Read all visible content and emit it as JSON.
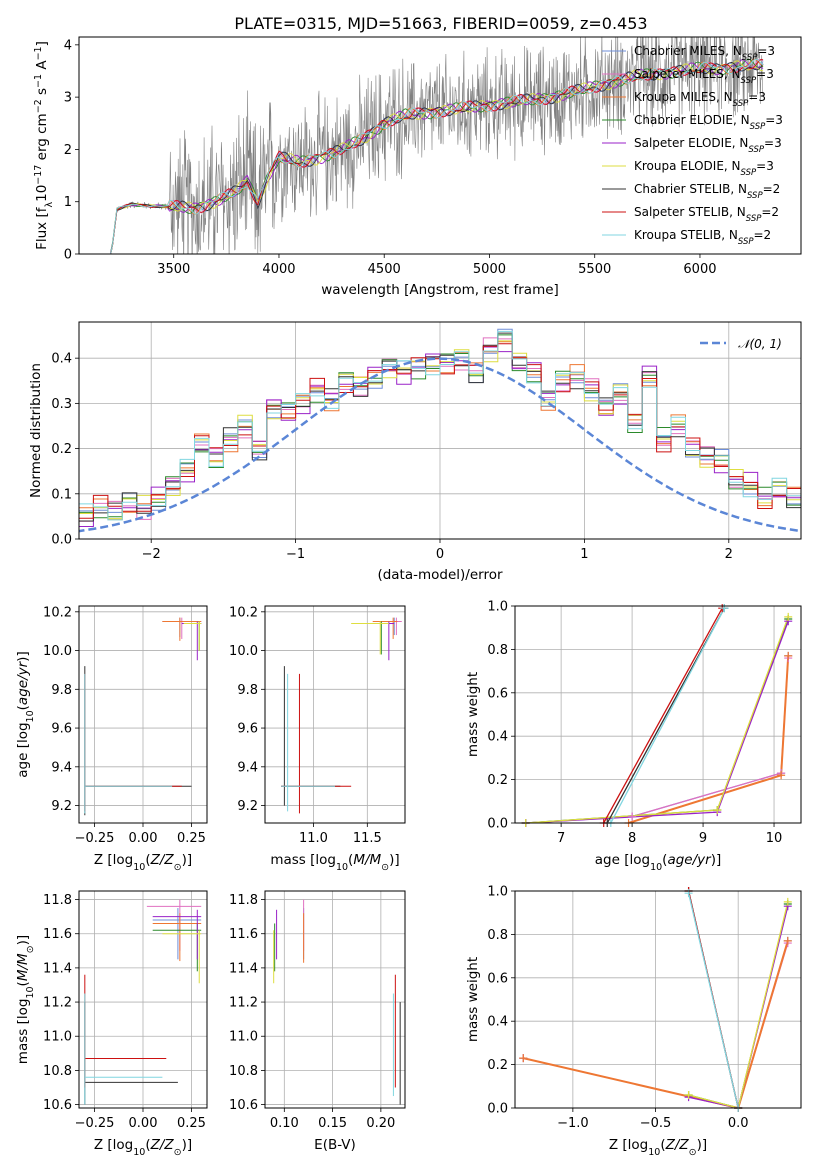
{
  "figure_title": "PLATE=0315, MJD=51663, FIBERID=0059, z=0.453",
  "colors": {
    "Chabrier MILES": "#6e8ed8",
    "Salpeter MILES": "#e070c0",
    "Kroupa MILES": "#ee7733",
    "Chabrier ELODIE": "#2b8a2b",
    "Salpeter ELODIE": "#9a22c8",
    "Kroupa ELODIE": "#dede40",
    "Chabrier STELIB": "#333333",
    "Salpeter STELIB": "#cc1111",
    "Kroupa STELIB": "#80d6e0",
    "data": "#808080",
    "normal": "#5b86d6"
  },
  "chart_data": [
    {
      "type": "line",
      "title": "PLATE=0315, MJD=51663, FIBERID=0059, z=0.453",
      "xlabel": "wavelength [Angstrom, rest frame]",
      "ylabel": "Flux [f_λ 10^-17 erg cm^-2 s^-1 A^-1]",
      "xlim": [
        3050,
        6480
      ],
      "ylim": [
        0,
        4.15
      ],
      "xticks": [
        3500,
        4000,
        4500,
        5000,
        5500,
        6000
      ],
      "yticks": [
        0,
        1,
        2,
        3,
        4
      ],
      "continuum": [
        [
          3200,
          0
        ],
        [
          3210,
          0.2
        ],
        [
          3230,
          0.85
        ],
        [
          3300,
          0.95
        ],
        [
          3400,
          0.92
        ],
        [
          3500,
          0.9
        ],
        [
          3600,
          0.88
        ],
        [
          3700,
          1.0
        ],
        [
          3800,
          1.2
        ],
        [
          3850,
          1.4
        ],
        [
          3900,
          1.0
        ],
        [
          3950,
          1.5
        ],
        [
          4000,
          1.85
        ],
        [
          4100,
          1.75
        ],
        [
          4200,
          1.85
        ],
        [
          4300,
          2.0
        ],
        [
          4400,
          2.2
        ],
        [
          4500,
          2.5
        ],
        [
          4600,
          2.65
        ],
        [
          4700,
          2.7
        ],
        [
          4800,
          2.75
        ],
        [
          4900,
          2.8
        ],
        [
          5000,
          2.85
        ],
        [
          5100,
          2.9
        ],
        [
          5200,
          2.95
        ],
        [
          5300,
          3.0
        ],
        [
          5400,
          3.1
        ],
        [
          5500,
          3.2
        ],
        [
          5600,
          3.3
        ],
        [
          5700,
          3.4
        ],
        [
          5800,
          3.45
        ],
        [
          5900,
          3.5
        ],
        [
          6000,
          3.55
        ],
        [
          6100,
          3.55
        ],
        [
          6200,
          3.6
        ],
        [
          6300,
          3.6
        ]
      ],
      "legend": [
        {
          "name": "Chabrier MILES",
          "label_main": "Chabrier MILES, N",
          "label_sub": "SSP",
          "label_end": "=3"
        },
        {
          "name": "Salpeter MILES",
          "label_main": "Salpeter MILES, N",
          "label_sub": "SSP",
          "label_end": "=3"
        },
        {
          "name": "Kroupa MILES",
          "label_main": "Kroupa MILES, N",
          "label_sub": "SSP",
          "label_end": "=3"
        },
        {
          "name": "Chabrier ELODIE",
          "label_main": "Chabrier ELODIE, N",
          "label_sub": "SSP",
          "label_end": "=3"
        },
        {
          "name": "Salpeter ELODIE",
          "label_main": "Salpeter ELODIE, N",
          "label_sub": "SSP",
          "label_end": "=3"
        },
        {
          "name": "Kroupa ELODIE",
          "label_main": "Kroupa ELODIE, N",
          "label_sub": "SSP",
          "label_end": "=3"
        },
        {
          "name": "Chabrier STELIB",
          "label_main": "Chabrier STELIB, N",
          "label_sub": "SSP",
          "label_end": "=2"
        },
        {
          "name": "Salpeter STELIB",
          "label_main": "Salpeter STELIB, N",
          "label_sub": "SSP",
          "label_end": "=2"
        },
        {
          "name": "Kroupa STELIB",
          "label_main": "Kroupa STELIB, N",
          "label_sub": "SSP",
          "label_end": "=2"
        }
      ],
      "legend_position": "upper right"
    },
    {
      "type": "line",
      "xlabel": "(data-model)/error",
      "ylabel": "Normed distribution",
      "xlim": [
        -2.5,
        2.5
      ],
      "ylim": [
        0,
        0.48
      ],
      "xticks": [
        -2,
        -1,
        0,
        1,
        2
      ],
      "yticks": [
        0.0,
        0.1,
        0.2,
        0.3,
        0.4
      ],
      "legend": "𝒩(0, 1)",
      "legend_position": "upper right",
      "bin_width": 0.1,
      "histogram_bins": [
        0.03,
        0.04,
        0.05,
        0.06,
        0.06,
        0.05,
        0.07,
        0.06,
        0.08,
        0.07,
        0.09,
        0.12,
        0.15,
        0.21,
        0.18,
        0.22,
        0.25,
        0.2,
        0.29,
        0.28,
        0.3,
        0.33,
        0.31,
        0.35,
        0.34,
        0.36,
        0.38,
        0.37,
        0.38,
        0.39,
        0.39,
        0.4,
        0.37,
        0.42,
        0.44,
        0.39,
        0.37,
        0.31,
        0.35,
        0.36,
        0.33,
        0.29,
        0.32,
        0.26,
        0.36,
        0.22,
        0.25,
        0.2,
        0.18,
        0.17,
        0.13,
        0.12,
        0.09,
        0.11,
        0.09,
        0.08,
        0.07,
        0.06,
        0.05,
        0.05
      ]
    },
    {
      "type": "scatter",
      "xlabel": "Z [log10(Z/Z⊙)]",
      "ylabel": "age [log10(age/yr)]",
      "xlim": [
        -0.33,
        0.33
      ],
      "ylim": [
        9.11,
        10.23
      ],
      "xticks": [
        -0.25,
        0.0,
        0.25
      ],
      "yticks": [
        9.2,
        9.4,
        9.6,
        9.8,
        10.0,
        10.2
      ],
      "error_crosses": [
        {
          "series": "Chabrier MILES",
          "x": 0.19,
          "y": 10.15,
          "x_lo": 0.1,
          "x_hi": 0.3,
          "y_lo": 10.07,
          "y_hi": 10.17
        },
        {
          "series": "Salpeter MILES",
          "x": 0.2,
          "y": 10.15,
          "x_lo": 0.1,
          "x_hi": 0.3,
          "y_lo": 10.06,
          "y_hi": 10.17
        },
        {
          "series": "Kroupa MILES",
          "x": 0.19,
          "y": 10.15,
          "x_lo": 0.1,
          "x_hi": 0.3,
          "y_lo": 10.05,
          "y_hi": 10.17
        },
        {
          "series": "Chabrier ELODIE",
          "x": 0.29,
          "y": 10.14,
          "x_lo": 0.21,
          "x_hi": 0.3,
          "y_lo": 10.0,
          "y_hi": 10.15
        },
        {
          "series": "Salpeter ELODIE",
          "x": 0.28,
          "y": 10.14,
          "x_lo": 0.2,
          "x_hi": 0.3,
          "y_lo": 9.95,
          "y_hi": 10.15
        },
        {
          "series": "Kroupa ELODIE",
          "x": 0.29,
          "y": 10.14,
          "x_lo": 0.21,
          "x_hi": 0.3,
          "y_lo": 10.0,
          "y_hi": 10.15
        },
        {
          "series": "Chabrier STELIB",
          "x": -0.3,
          "y": 9.3,
          "x_lo": -0.3,
          "x_hi": 0.25,
          "y_lo": 9.15,
          "y_hi": 9.92
        },
        {
          "series": "Salpeter STELIB",
          "x": -0.3,
          "y": 9.3,
          "x_lo": -0.3,
          "x_hi": 0.2,
          "y_lo": 9.17,
          "y_hi": 9.88
        },
        {
          "series": "Kroupa STELIB",
          "x": -0.3,
          "y": 9.3,
          "x_lo": -0.3,
          "x_hi": 0.15,
          "y_lo": 9.16,
          "y_hi": 9.88
        }
      ]
    },
    {
      "type": "scatter",
      "xlabel": "mass [log10(M/M⊙)]",
      "xlim": [
        10.55,
        11.85
      ],
      "ylim": [
        9.11,
        10.23
      ],
      "xticks": [
        11.0,
        11.5
      ],
      "yticks": [
        9.2,
        9.4,
        9.6,
        9.8,
        10.0,
        10.2
      ],
      "error_crosses": [
        {
          "series": "Chabrier MILES",
          "x": 11.75,
          "y": 10.15,
          "x_lo": 11.6,
          "x_hi": 11.8,
          "y_lo": 10.08,
          "y_hi": 10.17
        },
        {
          "series": "Salpeter MILES",
          "x": 11.77,
          "y": 10.15,
          "x_lo": 11.6,
          "x_hi": 11.82,
          "y_lo": 10.08,
          "y_hi": 10.17
        },
        {
          "series": "Kroupa MILES",
          "x": 11.74,
          "y": 10.15,
          "x_lo": 11.55,
          "x_hi": 11.78,
          "y_lo": 10.06,
          "y_hi": 10.17
        },
        {
          "series": "Chabrier ELODIE",
          "x": 11.63,
          "y": 10.14,
          "x_lo": 11.4,
          "x_hi": 11.7,
          "y_lo": 9.98,
          "y_hi": 10.15
        },
        {
          "series": "Salpeter ELODIE",
          "x": 11.7,
          "y": 10.14,
          "x_lo": 11.45,
          "x_hi": 11.75,
          "y_lo": 9.95,
          "y_hi": 10.15
        },
        {
          "series": "Kroupa ELODIE",
          "x": 11.62,
          "y": 10.14,
          "x_lo": 11.35,
          "x_hi": 11.7,
          "y_lo": 9.98,
          "y_hi": 10.15
        },
        {
          "series": "Chabrier STELIB",
          "x": 10.73,
          "y": 9.3,
          "x_lo": 10.7,
          "x_hi": 11.25,
          "y_lo": 9.2,
          "y_hi": 9.92
        },
        {
          "series": "Salpeter STELIB",
          "x": 10.87,
          "y": 9.3,
          "x_lo": 10.7,
          "x_hi": 11.35,
          "y_lo": 9.16,
          "y_hi": 9.88
        },
        {
          "series": "Kroupa STELIB",
          "x": 10.76,
          "y": 9.3,
          "x_lo": 10.7,
          "x_hi": 11.2,
          "y_lo": 9.17,
          "y_hi": 9.88
        }
      ]
    },
    {
      "type": "line",
      "xlabel": "age [log10(age/yr)]",
      "ylabel": "mass weight",
      "xlim": [
        6.35,
        10.38
      ],
      "ylim": [
        0,
        1
      ],
      "xticks": [
        7,
        8,
        9,
        10
      ],
      "yticks": [
        0.0,
        0.2,
        0.4,
        0.6,
        0.8,
        1.0
      ],
      "series": [
        {
          "name": "Chabrier MILES",
          "points": [
            [
              6.5,
              0
            ],
            [
              8.0,
              0.03
            ],
            [
              10.1,
              0.23
            ],
            [
              10.2,
              0.77
            ]
          ]
        },
        {
          "name": "Salpeter MILES",
          "points": [
            [
              6.5,
              0
            ],
            [
              8.0,
              0.03
            ],
            [
              10.1,
              0.23
            ],
            [
              10.2,
              0.76
            ]
          ]
        },
        {
          "name": "Kroupa MILES",
          "points": [
            [
              7.95,
              0
            ],
            [
              10.1,
              0.22
            ],
            [
              10.2,
              0.77
            ]
          ]
        },
        {
          "name": "Chabrier ELODIE",
          "points": [
            [
              6.5,
              0
            ],
            [
              9.2,
              0.06
            ],
            [
              10.2,
              0.94
            ]
          ]
        },
        {
          "name": "Salpeter ELODIE",
          "points": [
            [
              6.5,
              0
            ],
            [
              9.2,
              0.05
            ],
            [
              10.2,
              0.93
            ]
          ]
        },
        {
          "name": "Kroupa ELODIE",
          "points": [
            [
              6.5,
              0
            ],
            [
              9.2,
              0.06
            ],
            [
              10.2,
              0.95
            ]
          ]
        },
        {
          "name": "Chabrier STELIB",
          "points": [
            [
              7.65,
              0
            ],
            [
              9.3,
              0.99
            ]
          ]
        },
        {
          "name": "Salpeter STELIB",
          "points": [
            [
              7.6,
              0
            ],
            [
              9.27,
              0.99
            ]
          ]
        },
        {
          "name": "Kroupa STELIB",
          "points": [
            [
              7.7,
              0
            ],
            [
              9.3,
              0.99
            ]
          ]
        }
      ]
    },
    {
      "type": "scatter",
      "xlabel": "Z [log10(Z/Z⊙)]",
      "ylabel": "mass [log10(M/M⊙)]",
      "xlim": [
        -0.33,
        0.33
      ],
      "ylim": [
        10.58,
        11.85
      ],
      "xticks": [
        -0.25,
        0.0,
        0.25
      ],
      "yticks": [
        10.6,
        10.8,
        11.0,
        11.2,
        11.4,
        11.6,
        11.8
      ],
      "error_crosses": [
        {
          "series": "Chabrier MILES",
          "x": 0.18,
          "y": 11.68,
          "x_lo": 0.05,
          "x_hi": 0.3,
          "y_lo": 11.45,
          "y_hi": 11.75
        },
        {
          "series": "Salpeter MILES",
          "x": 0.19,
          "y": 11.76,
          "x_lo": 0.02,
          "x_hi": 0.3,
          "y_lo": 11.5,
          "y_hi": 11.8
        },
        {
          "series": "Kroupa MILES",
          "x": 0.19,
          "y": 11.66,
          "x_lo": 0.05,
          "x_hi": 0.3,
          "y_lo": 11.44,
          "y_hi": 11.72
        },
        {
          "series": "Chabrier ELODIE",
          "x": 0.28,
          "y": 11.62,
          "x_lo": 0.05,
          "x_hi": 0.3,
          "y_lo": 11.38,
          "y_hi": 11.66
        },
        {
          "series": "Salpeter ELODIE",
          "x": 0.28,
          "y": 11.7,
          "x_lo": 0.05,
          "x_hi": 0.3,
          "y_lo": 11.45,
          "y_hi": 11.74
        },
        {
          "series": "Kroupa ELODIE",
          "x": 0.29,
          "y": 11.6,
          "x_lo": 0.1,
          "x_hi": 0.3,
          "y_lo": 11.31,
          "y_hi": 11.62
        },
        {
          "series": "Chabrier STELIB",
          "x": -0.3,
          "y": 10.73,
          "x_lo": -0.3,
          "x_hi": 0.18,
          "y_lo": 10.6,
          "y_hi": 11.2
        },
        {
          "series": "Salpeter STELIB",
          "x": -0.3,
          "y": 10.87,
          "x_lo": -0.3,
          "x_hi": 0.12,
          "y_lo": 10.7,
          "y_hi": 11.36
        },
        {
          "series": "Kroupa STELIB",
          "x": -0.3,
          "y": 10.76,
          "x_lo": -0.3,
          "x_hi": 0.1,
          "y_lo": 10.6,
          "y_hi": 11.25
        }
      ]
    },
    {
      "type": "scatter",
      "xlabel": "E(B-V)",
      "xlim": [
        0.08,
        0.225
      ],
      "ylim": [
        10.58,
        11.85
      ],
      "xticks": [
        0.1,
        0.15,
        0.2
      ],
      "yticks": [
        10.6,
        10.8,
        11.0,
        11.2,
        11.4,
        11.6,
        11.8
      ],
      "error_bars": [
        {
          "series": "Chabrier MILES",
          "x": 0.12,
          "y_lo": 11.45,
          "y_hi": 11.75
        },
        {
          "series": "Salpeter MILES",
          "x": 0.12,
          "y_lo": 11.5,
          "y_hi": 11.8
        },
        {
          "series": "Kroupa MILES",
          "x": 0.12,
          "y_lo": 11.43,
          "y_hi": 11.72
        },
        {
          "series": "Chabrier ELODIE",
          "x": 0.09,
          "y_lo": 11.38,
          "y_hi": 11.66
        },
        {
          "series": "Salpeter ELODIE",
          "x": 0.092,
          "y_lo": 11.45,
          "y_hi": 11.74
        },
        {
          "series": "Kroupa ELODIE",
          "x": 0.089,
          "y_lo": 11.31,
          "y_hi": 11.62
        },
        {
          "series": "Chabrier STELIB",
          "x": 0.22,
          "y_lo": 10.6,
          "y_hi": 11.2
        },
        {
          "series": "Salpeter STELIB",
          "x": 0.215,
          "y_lo": 10.7,
          "y_hi": 11.36
        },
        {
          "series": "Kroupa STELIB",
          "x": 0.213,
          "y_lo": 10.65,
          "y_hi": 11.25
        }
      ]
    },
    {
      "type": "line",
      "xlabel": "Z [log10(Z/Z⊙)]",
      "ylabel": "mass weight",
      "xlim": [
        -1.35,
        0.38
      ],
      "ylim": [
        0,
        1
      ],
      "xticks": [
        -1.0,
        -0.5,
        0.0
      ],
      "yticks": [
        0.0,
        0.2,
        0.4,
        0.6,
        0.8,
        1.0
      ],
      "series": [
        {
          "name": "Chabrier MILES",
          "points": [
            [
              -1.3,
              0.23
            ],
            [
              0.0,
              0.0
            ],
            [
              0.3,
              0.77
            ]
          ]
        },
        {
          "name": "Salpeter MILES",
          "points": [
            [
              -1.3,
              0.23
            ],
            [
              0.0,
              0.0
            ],
            [
              0.3,
              0.76
            ]
          ]
        },
        {
          "name": "Kroupa MILES",
          "points": [
            [
              -1.3,
              0.23
            ],
            [
              0.0,
              0.0
            ],
            [
              0.3,
              0.77
            ]
          ]
        },
        {
          "name": "Chabrier ELODIE",
          "points": [
            [
              -0.3,
              0.06
            ],
            [
              0.0,
              0.0
            ],
            [
              0.3,
              0.94
            ]
          ]
        },
        {
          "name": "Salpeter ELODIE",
          "points": [
            [
              -0.3,
              0.05
            ],
            [
              0.0,
              0.0
            ],
            [
              0.3,
              0.93
            ]
          ]
        },
        {
          "name": "Kroupa ELODIE",
          "points": [
            [
              -0.3,
              0.06
            ],
            [
              0.0,
              0.0
            ],
            [
              0.3,
              0.95
            ]
          ]
        },
        {
          "name": "Chabrier STELIB",
          "points": [
            [
              -0.3,
              1.0
            ],
            [
              0.0,
              0.0
            ]
          ]
        },
        {
          "name": "Salpeter STELIB",
          "points": [
            [
              -0.3,
              1.0
            ],
            [
              0.0,
              0.0
            ]
          ]
        },
        {
          "name": "Kroupa STELIB",
          "points": [
            [
              -0.3,
              0.99
            ],
            [
              0.0,
              0.0
            ]
          ]
        }
      ]
    }
  ]
}
